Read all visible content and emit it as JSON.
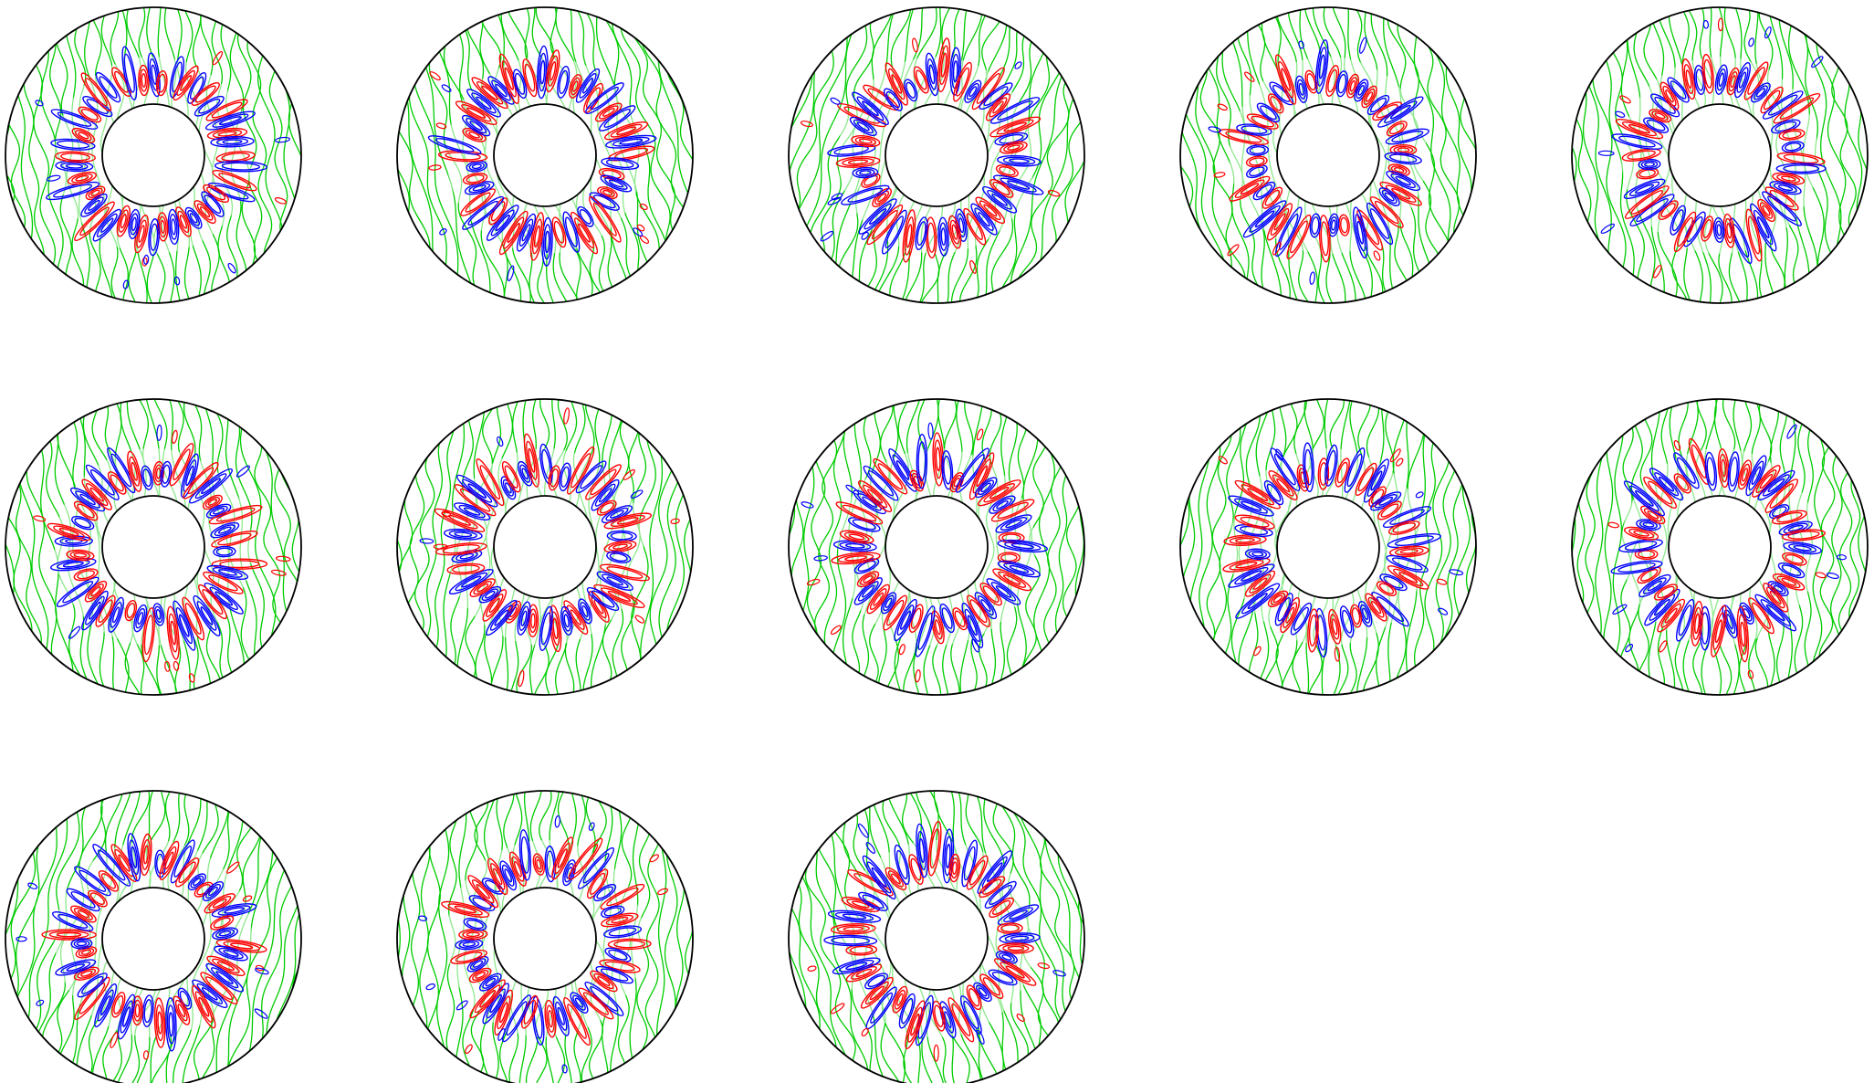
{
  "figure": {
    "panel_count": 13,
    "rows": [
      5,
      5,
      3
    ],
    "colors": {
      "positive_contours": "#ff0000",
      "negative_contours": "#0000ff",
      "background_contours": "#00cc00",
      "boundary": "#000000",
      "background": "#ffffff"
    }
  }
}
